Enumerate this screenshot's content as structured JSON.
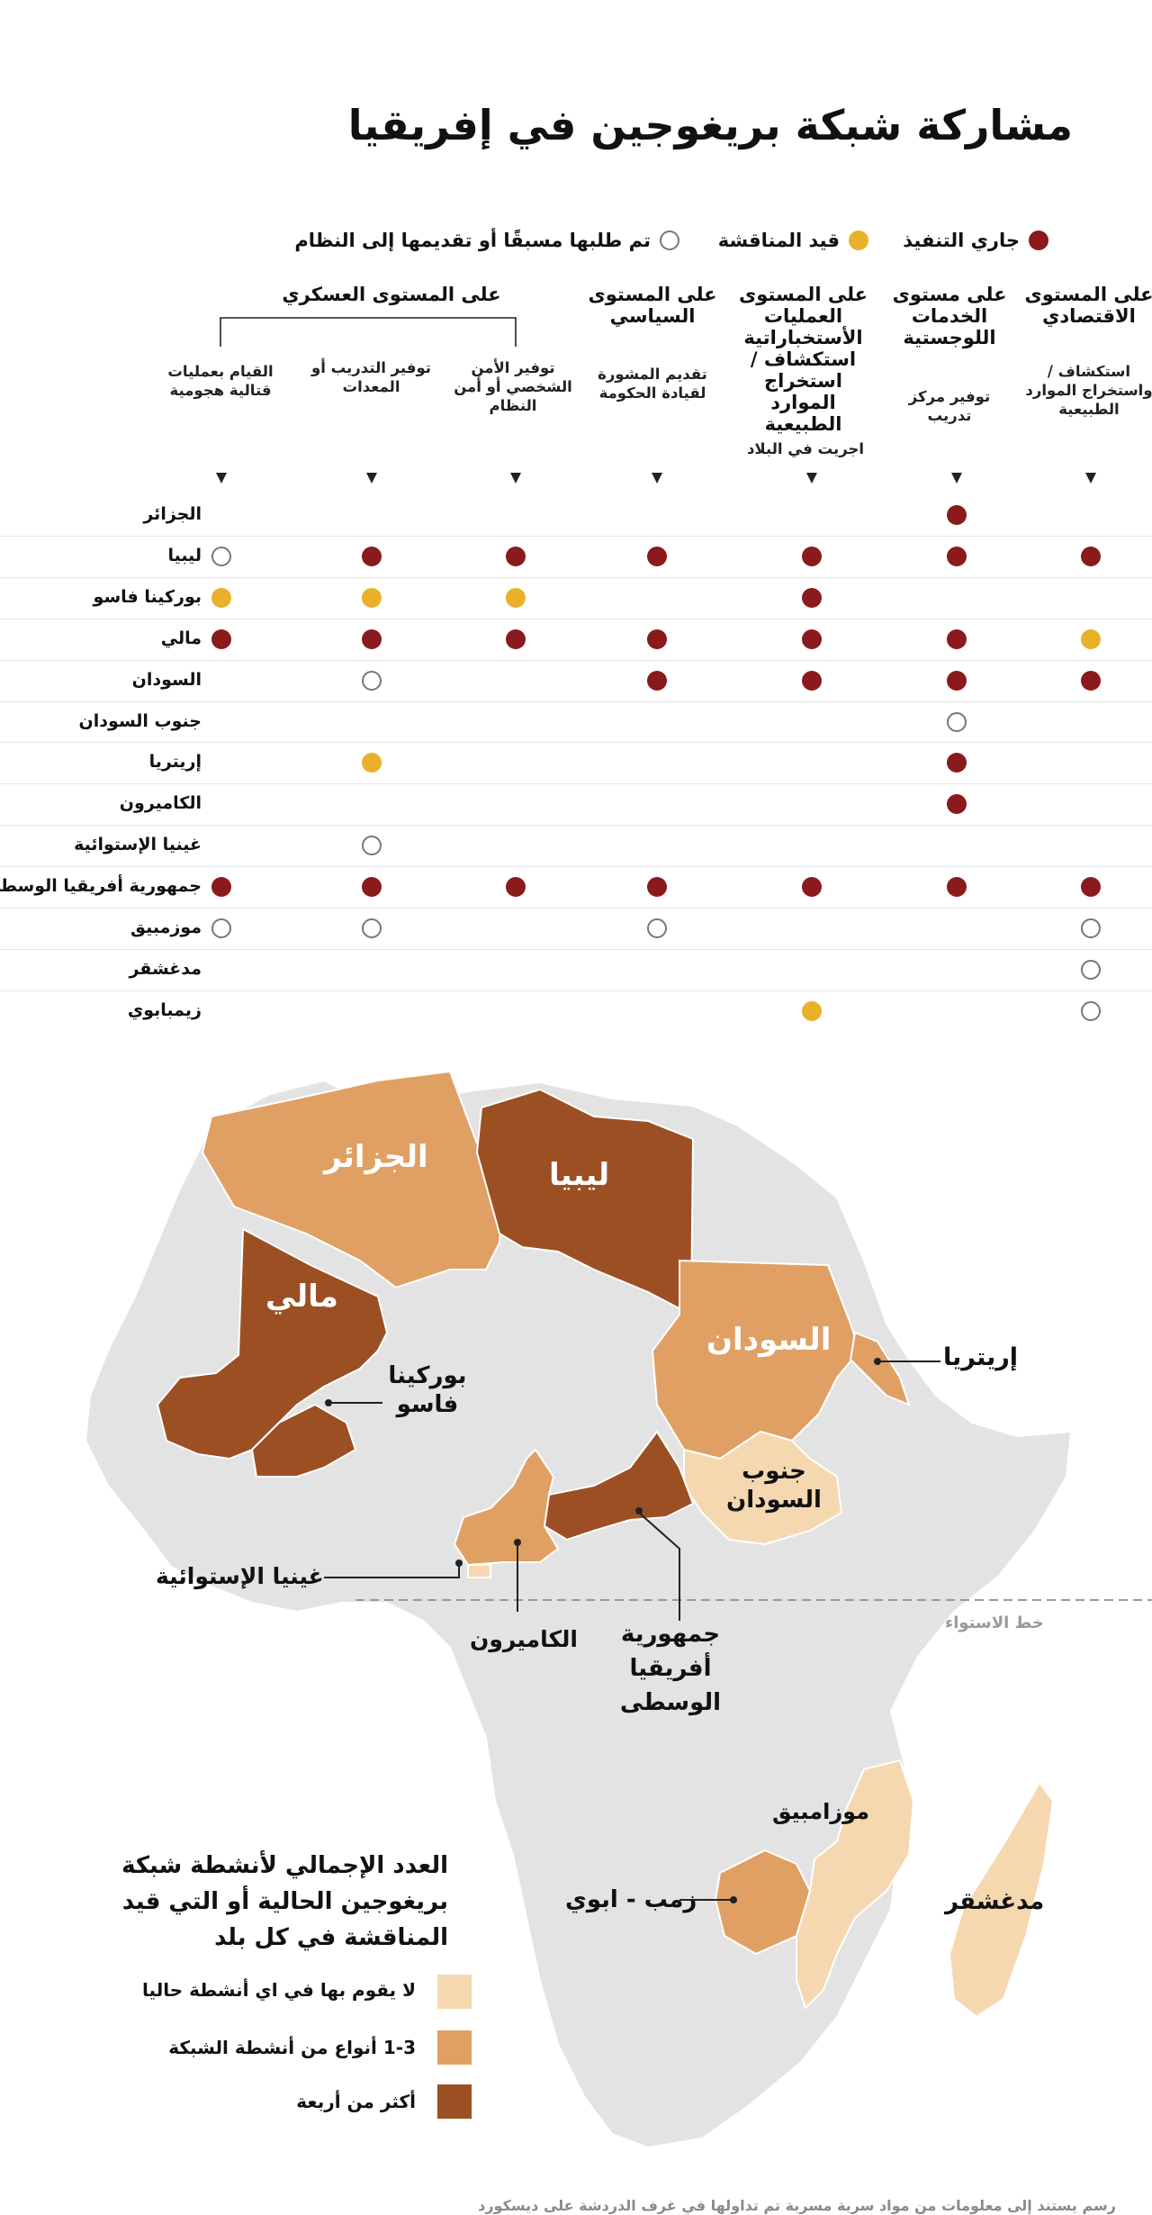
{
  "title": "مشاركة شبكة بريغوجين في إفريقيا",
  "legend_status": {
    "ongoing": "جاري التنفيذ",
    "negotiation": "قيد  المناقشة",
    "requested": "تم طلبها مسبقًا أو تقديمها إلى النظام"
  },
  "colors": {
    "ongoing": "#8b1a1c",
    "negotiation": "#e9b12a",
    "requested_border": "#777777",
    "none": "#f6d8b0",
    "one_to_three": "#e0a064",
    "four_plus": "#9c4f22",
    "land": "#e3e3e3"
  },
  "groups": {
    "military": "على المستوى العسكري"
  },
  "columns": [
    {
      "id": "economic",
      "head": "على المستوى الاقتصادي",
      "sub": "استكشاف / واستخراج الموارد الطبيعية"
    },
    {
      "id": "logistics",
      "head": "على مستوى الخدمات اللوجستية",
      "sub": "توفير مركز تدريب"
    },
    {
      "id": "intel",
      "head": "على المستوى العمليات الأستخباراتية استكشاف / استخراج الموارد الطبيعية",
      "sub": "اجريت في البلاد"
    },
    {
      "id": "political",
      "head": "على المستوى السياسي",
      "sub": "تقديم المشورة لقيادة الحكومة"
    },
    {
      "id": "security",
      "head": "",
      "sub": "توفير الأمن الشخصي أو أمن النظام"
    },
    {
      "id": "training",
      "head": "",
      "sub": "توفير التدريب أو المعدات"
    },
    {
      "id": "combat",
      "head": "",
      "sub": "القيام بعمليات قتالية هجومية"
    }
  ],
  "rows": [
    {
      "country": "الجزائر",
      "cells": [
        "",
        "r",
        "",
        "",
        "",
        "",
        ""
      ]
    },
    {
      "country": "ليبيا",
      "cells": [
        "r",
        "r",
        "r",
        "r",
        "r",
        "r",
        "o"
      ]
    },
    {
      "country": "بوركينا فاسو",
      "cells": [
        "",
        "",
        "r",
        "",
        "y",
        "y",
        "y"
      ]
    },
    {
      "country": "مالي",
      "cells": [
        "y",
        "r",
        "r",
        "r",
        "r",
        "r",
        "r"
      ]
    },
    {
      "country": "السودان",
      "cells": [
        "r",
        "r",
        "r",
        "r",
        "",
        "o",
        ""
      ]
    },
    {
      "country": "جنوب السودان",
      "cells": [
        "",
        "o",
        "",
        "",
        "",
        "",
        ""
      ]
    },
    {
      "country": "إريتريا",
      "cells": [
        "",
        "r",
        "",
        "",
        "",
        "y",
        ""
      ]
    },
    {
      "country": "الكاميرون",
      "cells": [
        "",
        "r",
        "",
        "",
        "",
        "",
        ""
      ]
    },
    {
      "country": "غينيا الإستوائية",
      "cells": [
        "",
        "",
        "",
        "",
        "",
        "o",
        ""
      ]
    },
    {
      "country": "جمهورية أفريقيا الوسطى",
      "cells": [
        "r",
        "r",
        "r",
        "r",
        "r",
        "r",
        "r"
      ]
    },
    {
      "country": "موزمبيق",
      "cells": [
        "o",
        "",
        "",
        "o",
        "",
        "o",
        "o"
      ]
    },
    {
      "country": "مدغشقر",
      "cells": [
        "o",
        "",
        "",
        "",
        "",
        "",
        ""
      ]
    },
    {
      "country": "زيمبابوي",
      "cells": [
        "o",
        "",
        "y",
        "",
        "",
        "",
        ""
      ]
    }
  ],
  "map_labels": {
    "algeria": "الجزائر",
    "libya": "ليبيا",
    "mali": "مالي",
    "sudan": "السودان",
    "burkina": "بوركينا فاسو",
    "eritrea": "إريتريا",
    "south_sudan": "جنوب السودان",
    "eq_guinea": "غينيا الإستوائية",
    "cameroon": "الكاميرون",
    "car": "جمهورية أفريقيا الوسطى",
    "equator": "خط الاستواء",
    "mozambique": "موزامبيق",
    "zimbabwe": "زمب - ابوي",
    "madagascar": "مدغشقر"
  },
  "map_legend": {
    "title": "العدد الإجمالي لأنشطة شبكة بريغوجين الحالية أو  التي قيد المناقشة في كل بلد",
    "none": "لا يقوم بها في اي أنشطة  حاليا",
    "one_to_three": "1-3 أنواع من أنشطة الشبكة",
    "four_plus": "أكثر من أربعة"
  },
  "footer": "رسم يستند إلى معلومات من مواد سرية مسربة تم تداولها في غرف الدردشة على ديسكورد"
}
